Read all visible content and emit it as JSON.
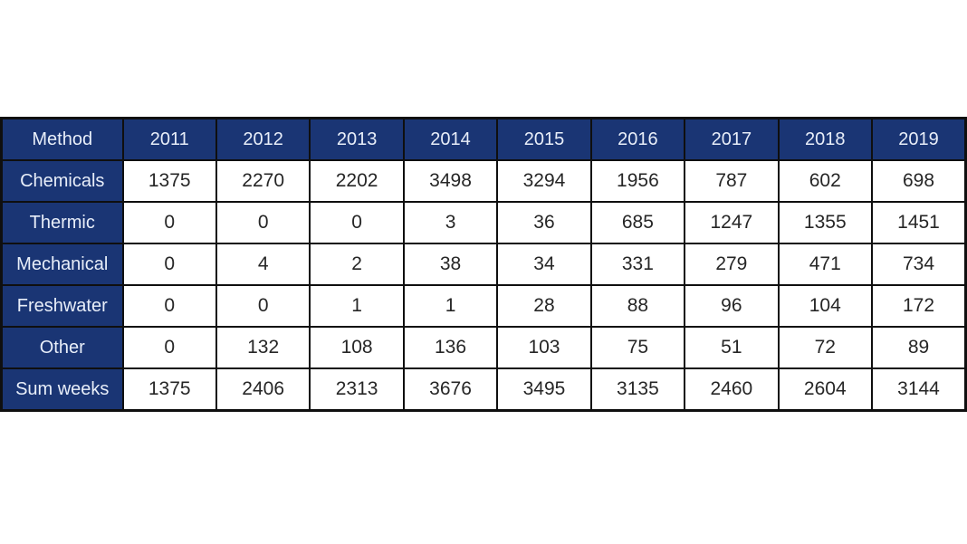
{
  "colors": {
    "header_bg": "#1a3574",
    "header_text": "#e8eef9",
    "border": "#0f0f0f",
    "cell_bg": "#ffffff",
    "cell_text": "#262626"
  },
  "table": {
    "columns": [
      "Method",
      "2011",
      "2012",
      "2013",
      "2014",
      "2015",
      "2016",
      "2017",
      "2018",
      "2019"
    ],
    "rows": [
      {
        "label": "Chemicals",
        "values": [
          "1375",
          "2270",
          "2202",
          "3498",
          "3294",
          "1956",
          "787",
          "602",
          "698"
        ]
      },
      {
        "label": "Thermic",
        "values": [
          "0",
          "0",
          "0",
          "3",
          "36",
          "685",
          "1247",
          "1355",
          "1451"
        ]
      },
      {
        "label": "Mechanical",
        "values": [
          "0",
          "4",
          "2",
          "38",
          "34",
          "331",
          "279",
          "471",
          "734"
        ]
      },
      {
        "label": "Freshwater",
        "values": [
          "0",
          "0",
          "1",
          "1",
          "28",
          "88",
          "96",
          "104",
          "172"
        ]
      },
      {
        "label": "Other",
        "values": [
          "0",
          "132",
          "108",
          "136",
          "103",
          "75",
          "51",
          "72",
          "89"
        ]
      },
      {
        "label": "Sum weeks",
        "values": [
          "1375",
          "2406",
          "2313",
          "3676",
          "3495",
          "3135",
          "2460",
          "2604",
          "3144"
        ]
      }
    ]
  },
  "chart_data": {
    "type": "table",
    "title": "",
    "row_header_label": "Method",
    "categories": [
      "2011",
      "2012",
      "2013",
      "2014",
      "2015",
      "2016",
      "2017",
      "2018",
      "2019"
    ],
    "series": [
      {
        "name": "Chemicals",
        "values": [
          1375,
          2270,
          2202,
          3498,
          3294,
          1956,
          787,
          602,
          698
        ]
      },
      {
        "name": "Thermic",
        "values": [
          0,
          0,
          0,
          3,
          36,
          685,
          1247,
          1355,
          1451
        ]
      },
      {
        "name": "Mechanical",
        "values": [
          0,
          4,
          2,
          38,
          34,
          331,
          279,
          471,
          734
        ]
      },
      {
        "name": "Freshwater",
        "values": [
          0,
          0,
          1,
          1,
          28,
          88,
          96,
          104,
          172
        ]
      },
      {
        "name": "Other",
        "values": [
          0,
          132,
          108,
          136,
          103,
          75,
          51,
          72,
          89
        ]
      },
      {
        "name": "Sum weeks",
        "values": [
          1375,
          2406,
          2313,
          3676,
          3495,
          3135,
          2460,
          2604,
          3144
        ]
      }
    ],
    "layout": {
      "header_row": true,
      "header_column": true,
      "grid": true
    }
  }
}
